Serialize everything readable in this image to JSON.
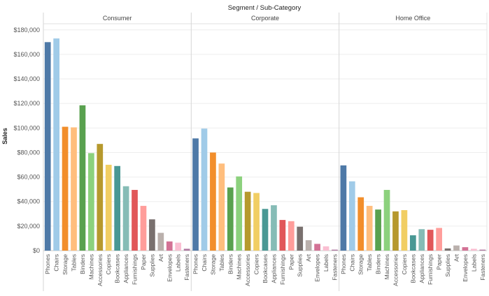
{
  "chart_data": {
    "type": "bar",
    "title": "Segment / Sub-Category",
    "ylabel": "Sales",
    "xlabel": "",
    "ylim": [
      0,
      185000
    ],
    "yticks": [
      "$0",
      "$20,000",
      "$40,000",
      "$60,000",
      "$80,000",
      "$100,000",
      "$120,000",
      "$140,000",
      "$160,000",
      "$180,000"
    ],
    "grid": true,
    "categories": [
      "Phones",
      "Chairs",
      "Storage",
      "Tables",
      "Binders",
      "Machines",
      "Accessories",
      "Copiers",
      "Bookcases",
      "Appliances",
      "Furnishings",
      "Paper",
      "Supplies",
      "Art",
      "Envelopes",
      "Labels",
      "Fasteners"
    ],
    "colors": [
      "#4e79a7",
      "#a0cbe8",
      "#f28e2b",
      "#ffbe7d",
      "#59a14f",
      "#8cd17d",
      "#b6992d",
      "#f1ce63",
      "#499894",
      "#86bcb6",
      "#e15759",
      "#ff9d9a",
      "#79706e",
      "#bab0ac",
      "#d37295",
      "#fabfd2",
      "#b07aa1"
    ],
    "series": [
      {
        "name": "Consumer",
        "values": [
          170000,
          173000,
          101000,
          100500,
          118500,
          79500,
          87000,
          70000,
          69000,
          52500,
          49500,
          36500,
          25500,
          14500,
          7500,
          6500,
          1500
        ]
      },
      {
        "name": "Corporate",
        "values": [
          91500,
          99500,
          80000,
          71000,
          51500,
          60500,
          48000,
          47000,
          34000,
          37000,
          25000,
          24000,
          19500,
          8500,
          5500,
          3500,
          800
        ]
      },
      {
        "name": "Home Office",
        "values": [
          69500,
          56500,
          43500,
          36500,
          33500,
          49500,
          32000,
          33000,
          12500,
          17500,
          17000,
          18500,
          1800,
          4200,
          2800,
          1500,
          800
        ]
      }
    ]
  }
}
